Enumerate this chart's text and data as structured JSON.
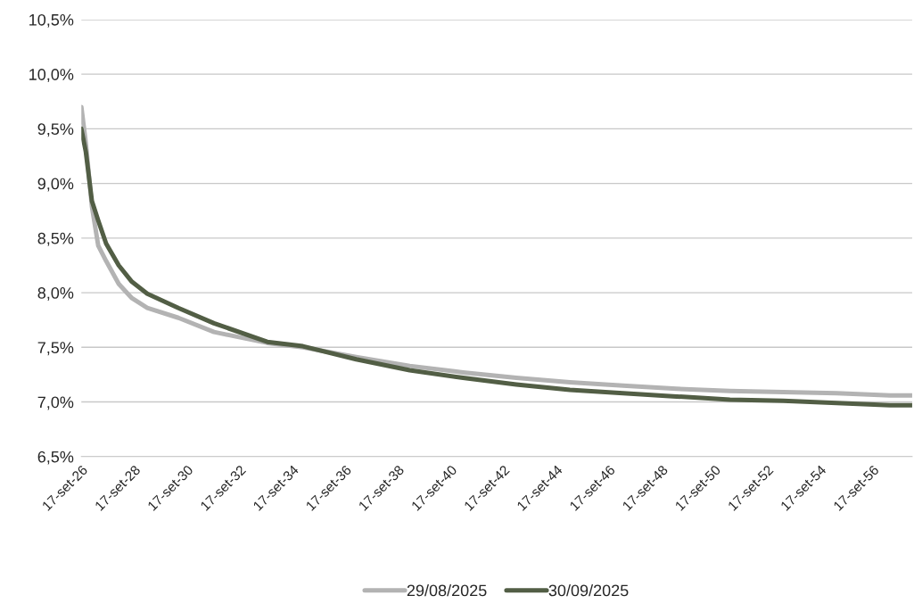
{
  "chart_data": {
    "type": "line",
    "x": [
      "2026-09-17",
      "2026-11-18",
      "2027-02-10",
      "2027-05-09",
      "2027-08-26",
      "2028-02-17",
      "2028-08-17",
      "2029-03-18",
      "2030-05-23",
      "2031-09-28",
      "2033-10-05",
      "2035-02-10",
      "2037-02-17",
      "2039-02-28",
      "2041-03-08",
      "2043-03-15",
      "2045-03-26",
      "2047-04-02",
      "2049-04-10",
      "2051-04-20",
      "2053-04-28",
      "2055-05-09",
      "2057-05-16",
      "2058-03-18"
    ],
    "series": [
      {
        "name": "29/08/2025",
        "color": "#b3b3b3",
        "values": [
          9.7,
          9.37,
          8.79,
          8.43,
          8.29,
          8.08,
          7.95,
          7.86,
          7.77,
          7.64,
          7.54,
          7.5,
          7.41,
          7.33,
          7.27,
          7.22,
          7.18,
          7.15,
          7.12,
          7.1,
          7.09,
          7.08,
          7.06,
          7.06
        ]
      },
      {
        "name": "30/09/2025",
        "color": "#525e45",
        "values": [
          9.5,
          9.29,
          8.84,
          8.66,
          8.45,
          8.25,
          8.1,
          7.99,
          7.86,
          7.72,
          7.55,
          7.51,
          7.39,
          7.29,
          7.22,
          7.16,
          7.11,
          7.08,
          7.05,
          7.02,
          7.01,
          6.99,
          6.97,
          6.97
        ]
      }
    ],
    "xlim": [
      "2026-09-17",
      "2058-03-18"
    ],
    "xticks": [
      {
        "value": "2026-09-17",
        "label": "17-set-26"
      },
      {
        "value": "2028-09-17",
        "label": "17-set-28"
      },
      {
        "value": "2030-09-17",
        "label": "17-set-30"
      },
      {
        "value": "2032-09-17",
        "label": "17-set-32"
      },
      {
        "value": "2034-09-17",
        "label": "17-set-34"
      },
      {
        "value": "2036-09-17",
        "label": "17-set-36"
      },
      {
        "value": "2038-09-17",
        "label": "17-set-38"
      },
      {
        "value": "2040-09-17",
        "label": "17-set-40"
      },
      {
        "value": "2042-09-17",
        "label": "17-set-42"
      },
      {
        "value": "2044-09-17",
        "label": "17-set-44"
      },
      {
        "value": "2046-09-17",
        "label": "17-set-46"
      },
      {
        "value": "2048-09-17",
        "label": "17-set-48"
      },
      {
        "value": "2050-09-17",
        "label": "17-set-50"
      },
      {
        "value": "2052-09-17",
        "label": "17-set-52"
      },
      {
        "value": "2054-09-17",
        "label": "17-set-54"
      },
      {
        "value": "2056-09-17",
        "label": "17-set-56"
      }
    ],
    "ylim": [
      6.5,
      10.5
    ],
    "yticks": [
      {
        "value": 6.5,
        "label": "6,5%"
      },
      {
        "value": 7.0,
        "label": "7,0%"
      },
      {
        "value": 7.5,
        "label": "7,5%"
      },
      {
        "value": 8.0,
        "label": "8,0%"
      },
      {
        "value": 8.5,
        "label": "8,5%"
      },
      {
        "value": 9.0,
        "label": "9,0%"
      },
      {
        "value": 9.5,
        "label": "9,5%"
      },
      {
        "value": 10.0,
        "label": "10,0%"
      },
      {
        "value": 10.5,
        "label": "10,5%"
      }
    ],
    "grid": "y",
    "legend": "bottom",
    "marker": "none",
    "line_style": "solid"
  }
}
